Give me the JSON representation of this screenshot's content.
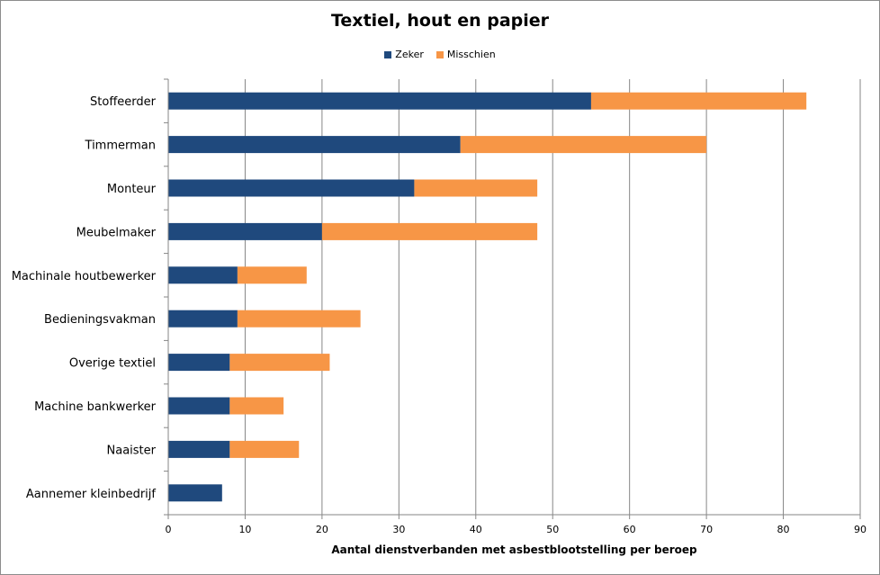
{
  "chart_data": {
    "type": "bar",
    "orientation": "horizontal",
    "stacked": true,
    "title": "Textiel, hout en papier",
    "xlabel": "Aantal dienstverbanden met asbestblootstelling per beroep",
    "ylabel": "",
    "xlim": [
      0,
      90
    ],
    "xticks": [
      0,
      10,
      20,
      30,
      40,
      50,
      60,
      70,
      80,
      90
    ],
    "grid": true,
    "legend_position": "top",
    "categories": [
      "Stoffeerder",
      "Timmerman",
      "Monteur",
      "Meubelmaker",
      "Machinale houtbewerker",
      "Bedieningsvakman",
      "Overige textiel",
      "Machine bankwerker",
      "Naaister",
      "Aannemer kleinbedrijf"
    ],
    "series": [
      {
        "name": "Zeker",
        "color": "#1f497d",
        "values": [
          55,
          38,
          32,
          20,
          9,
          9,
          8,
          8,
          8,
          7
        ]
      },
      {
        "name": "Misschien",
        "color": "#f79646",
        "values": [
          28,
          32,
          16,
          28,
          9,
          16,
          13,
          7,
          9,
          0
        ]
      }
    ]
  }
}
